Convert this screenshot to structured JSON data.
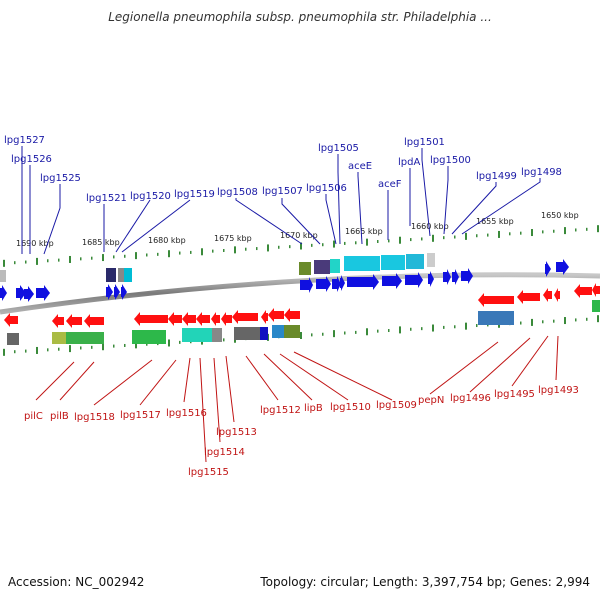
{
  "title": "Legionella pneumophila subsp. pneumophila str. Philadelphia ...",
  "accession": "Accession: NC_002942",
  "summary": "Topology: circular; Length: 3,397,754 bp; Genes: 2,994",
  "colors": {
    "forward": "#1a1aa6",
    "reverse": "#c01414",
    "tick": "#3a8a3a",
    "backbone": "#8a8a8a"
  },
  "scale": [
    {
      "label": "1690 kbp"
    },
    {
      "label": "1685 kbp"
    },
    {
      "label": "1680 kbp"
    },
    {
      "label": "1675 kbp"
    },
    {
      "label": "1670 kbp"
    },
    {
      "label": "1665 kbp"
    },
    {
      "label": "1660 kbp"
    },
    {
      "label": "1655 kbp"
    },
    {
      "label": "1650 kbp"
    }
  ],
  "forward_genes": [
    {
      "label": "lpg1527"
    },
    {
      "label": "lpg1526"
    },
    {
      "label": "lpg1525"
    },
    {
      "label": "lpg1521"
    },
    {
      "label": "lpg1520"
    },
    {
      "label": "lpg1519"
    },
    {
      "label": "lpg1508"
    },
    {
      "label": "lpg1507"
    },
    {
      "label": "lpg1506"
    },
    {
      "label": "lpg1505"
    },
    {
      "label": "aceE"
    },
    {
      "label": "aceF"
    },
    {
      "label": "lpdA"
    },
    {
      "label": "lpg1501"
    },
    {
      "label": "lpg1500"
    },
    {
      "label": "lpg1499"
    },
    {
      "label": "lpg1498"
    }
  ],
  "reverse_genes": [
    {
      "label": "pilC"
    },
    {
      "label": "pilB"
    },
    {
      "label": "lpg1518"
    },
    {
      "label": "lpg1517"
    },
    {
      "label": "lpg1516"
    },
    {
      "label": "lpg1515"
    },
    {
      "label": "lpg1514"
    },
    {
      "label": "lpg1513"
    },
    {
      "label": "lpg1512"
    },
    {
      "label": "lipB"
    },
    {
      "label": "lpg1510"
    },
    {
      "label": "lpg1509"
    },
    {
      "label": "pepN"
    },
    {
      "label": "lpg1496"
    },
    {
      "label": "lpg1495"
    },
    {
      "label": "lpg1493"
    }
  ]
}
